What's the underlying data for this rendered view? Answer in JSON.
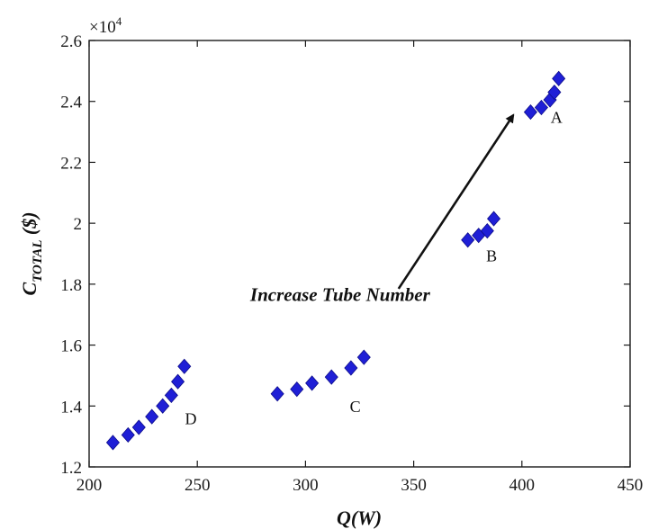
{
  "chart_data": {
    "type": "scatter",
    "title": "",
    "xlabel": "Q(W)",
    "ylabel": {
      "main": "C",
      "sub": "TOTAL",
      "unit": " ($)"
    },
    "xlim": [
      200,
      450
    ],
    "ylim": [
      12000,
      26000
    ],
    "x_ticks": [
      200,
      250,
      300,
      350,
      400,
      450
    ],
    "y_ticks": [
      12000,
      14000,
      16000,
      18000,
      20000,
      22000,
      24000,
      26000
    ],
    "x_tick_labels": [
      "200",
      "250",
      "300",
      "350",
      "400",
      "450"
    ],
    "y_tick_labels": [
      "1.2",
      "1.4",
      "1.6",
      "1.8",
      "2",
      "2.2",
      "2.4",
      "2.6"
    ],
    "y_multiplier": {
      "base": "×10",
      "exponent": "4"
    },
    "grid": false,
    "marker": "diamond",
    "marker_color": "#1f1fd6",
    "series": [
      {
        "points": [
          [
            211,
            12800
          ],
          [
            218,
            13050
          ],
          [
            223,
            13300
          ],
          [
            229,
            13650
          ],
          [
            234,
            14000
          ],
          [
            238,
            14350
          ],
          [
            241,
            14800
          ],
          [
            244,
            15300
          ]
        ]
      },
      {
        "points": [
          [
            287,
            14400
          ],
          [
            296,
            14550
          ],
          [
            303,
            14750
          ],
          [
            312,
            14950
          ],
          [
            321,
            15250
          ],
          [
            327,
            15600
          ]
        ]
      },
      {
        "points": [
          [
            375,
            19450
          ],
          [
            380,
            19600
          ],
          [
            384,
            19750
          ],
          [
            387,
            20150
          ]
        ]
      },
      {
        "points": [
          [
            404,
            23650
          ],
          [
            409,
            23800
          ],
          [
            413,
            24050
          ],
          [
            415,
            24300
          ],
          [
            417,
            24750
          ]
        ]
      }
    ],
    "group_labels": [
      {
        "text": "D",
        "x": 247,
        "y": 13400
      },
      {
        "text": "C",
        "x": 323,
        "y": 13800
      },
      {
        "text": "B",
        "x": 386,
        "y": 18750
      },
      {
        "text": "A",
        "x": 416,
        "y": 23300
      }
    ],
    "annotation": {
      "text": "Increase Tube Number",
      "text_x": 316,
      "text_y": 17450,
      "arrow_from": [
        343,
        17850
      ],
      "arrow_to": [
        396,
        23550
      ]
    }
  }
}
